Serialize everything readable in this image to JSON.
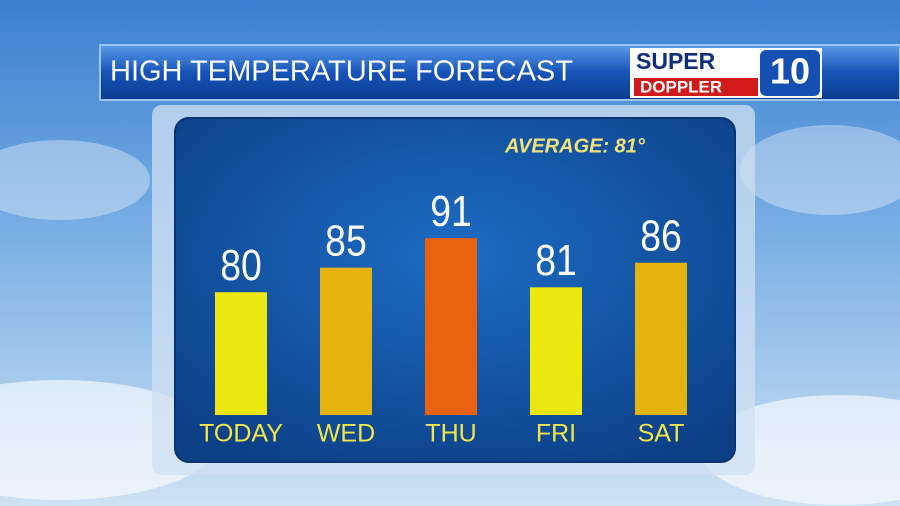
{
  "chart_data": {
    "type": "bar",
    "title": "HIGH TEMPERATURE FORECAST",
    "annotation": "AVERAGE: 81°",
    "categories": [
      "TODAY",
      "WED",
      "THU",
      "FRI",
      "SAT"
    ],
    "values": [
      80,
      85,
      91,
      81,
      86
    ],
    "colors": [
      "#ece80e",
      "#e5b30d",
      "#e8620f",
      "#ece80e",
      "#e5b30d"
    ],
    "ylim": [
      55,
      100
    ]
  },
  "logo": {
    "line1": "SUPER",
    "line2": "DOPPLER",
    "number": "10"
  }
}
